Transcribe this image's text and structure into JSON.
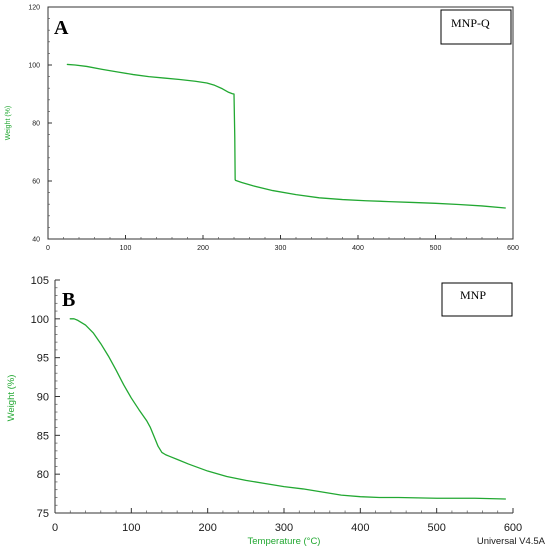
{
  "colors": {
    "curve": "#22a832",
    "axis_label": "#22a832"
  },
  "chart_data": [
    {
      "type": "line",
      "panel_label": "A",
      "legend": "MNP-Q",
      "xlabel": "",
      "ylabel": "Weight (%)",
      "xlim": [
        0,
        600
      ],
      "ylim": [
        40,
        120
      ],
      "xticks": [
        "0",
        "100",
        "200",
        "300",
        "400",
        "500",
        "600"
      ],
      "yticks": [
        "40",
        "60",
        "80",
        "100",
        "120"
      ],
      "series": [
        {
          "x": [
            25,
            35,
            50,
            70,
            90,
            110,
            130,
            150,
            170,
            190,
            205,
            215,
            225,
            233,
            238,
            240,
            241,
            241.5,
            242,
            250,
            265,
            290,
            320,
            350,
            380,
            410,
            440,
            470,
            500,
            530,
            560,
            590
          ],
          "y": [
            100.2,
            100.0,
            99.5,
            98.5,
            97.6,
            96.7,
            96.0,
            95.5,
            95.0,
            94.4,
            93.8,
            93.0,
            91.8,
            90.6,
            90.1,
            90.0,
            75,
            60.5,
            60.2,
            59.5,
            58.3,
            56.7,
            55.3,
            54.2,
            53.6,
            53.2,
            52.9,
            52.6,
            52.3,
            51.9,
            51.4,
            50.7
          ]
        }
      ]
    },
    {
      "type": "line",
      "panel_label": "B",
      "legend": "MNP",
      "xlabel": "Temperature (°C)",
      "ylabel": "Weight (%)",
      "xlim": [
        0,
        600
      ],
      "ylim": [
        75,
        105
      ],
      "xticks": [
        "0",
        "100",
        "200",
        "300",
        "400",
        "500",
        "600"
      ],
      "yticks": [
        "75",
        "80",
        "85",
        "90",
        "95",
        "100",
        "105"
      ],
      "footer": "Universal V4.5A",
      "series": [
        {
          "x": [
            20,
            25,
            30,
            40,
            50,
            60,
            70,
            80,
            90,
            100,
            110,
            120,
            125,
            130,
            135,
            140,
            145,
            150,
            160,
            175,
            200,
            225,
            250,
            275,
            300,
            325,
            350,
            375,
            400,
            425,
            450,
            500,
            550,
            590
          ],
          "y": [
            100.0,
            100.0,
            99.8,
            99.2,
            98.2,
            96.8,
            95.2,
            93.4,
            91.5,
            89.8,
            88.3,
            86.9,
            86.0,
            84.8,
            83.6,
            82.8,
            82.5,
            82.3,
            81.9,
            81.3,
            80.4,
            79.7,
            79.2,
            78.8,
            78.4,
            78.1,
            77.7,
            77.3,
            77.1,
            77.0,
            77.0,
            76.9,
            76.9,
            76.8
          ]
        }
      ]
    }
  ]
}
